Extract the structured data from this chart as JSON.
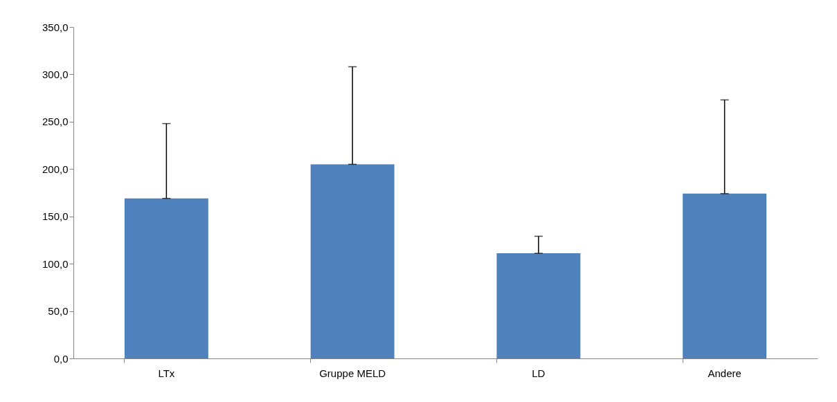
{
  "chart_data": {
    "type": "bar",
    "categories": [
      "LTx",
      "Gruppe MELD",
      "LD",
      "Andere"
    ],
    "values": [
      169,
      205,
      111,
      174
    ],
    "errors": [
      [
        169,
        248
      ],
      [
        205,
        308
      ],
      [
        111,
        129
      ],
      [
        174,
        273
      ]
    ],
    "color": "#4f81bd",
    "ylim": [
      0,
      350
    ],
    "yticks": [
      {
        "value": 0,
        "label": "0,0"
      },
      {
        "value": 50,
        "label": "50,0"
      },
      {
        "value": 100,
        "label": "100,0"
      },
      {
        "value": 150,
        "label": "150,0"
      },
      {
        "value": 200,
        "label": "200,0"
      },
      {
        "value": 250,
        "label": "250,0"
      },
      {
        "value": 300,
        "label": "300,0"
      },
      {
        "value": 350,
        "label": "350,0"
      }
    ],
    "grid": false
  }
}
